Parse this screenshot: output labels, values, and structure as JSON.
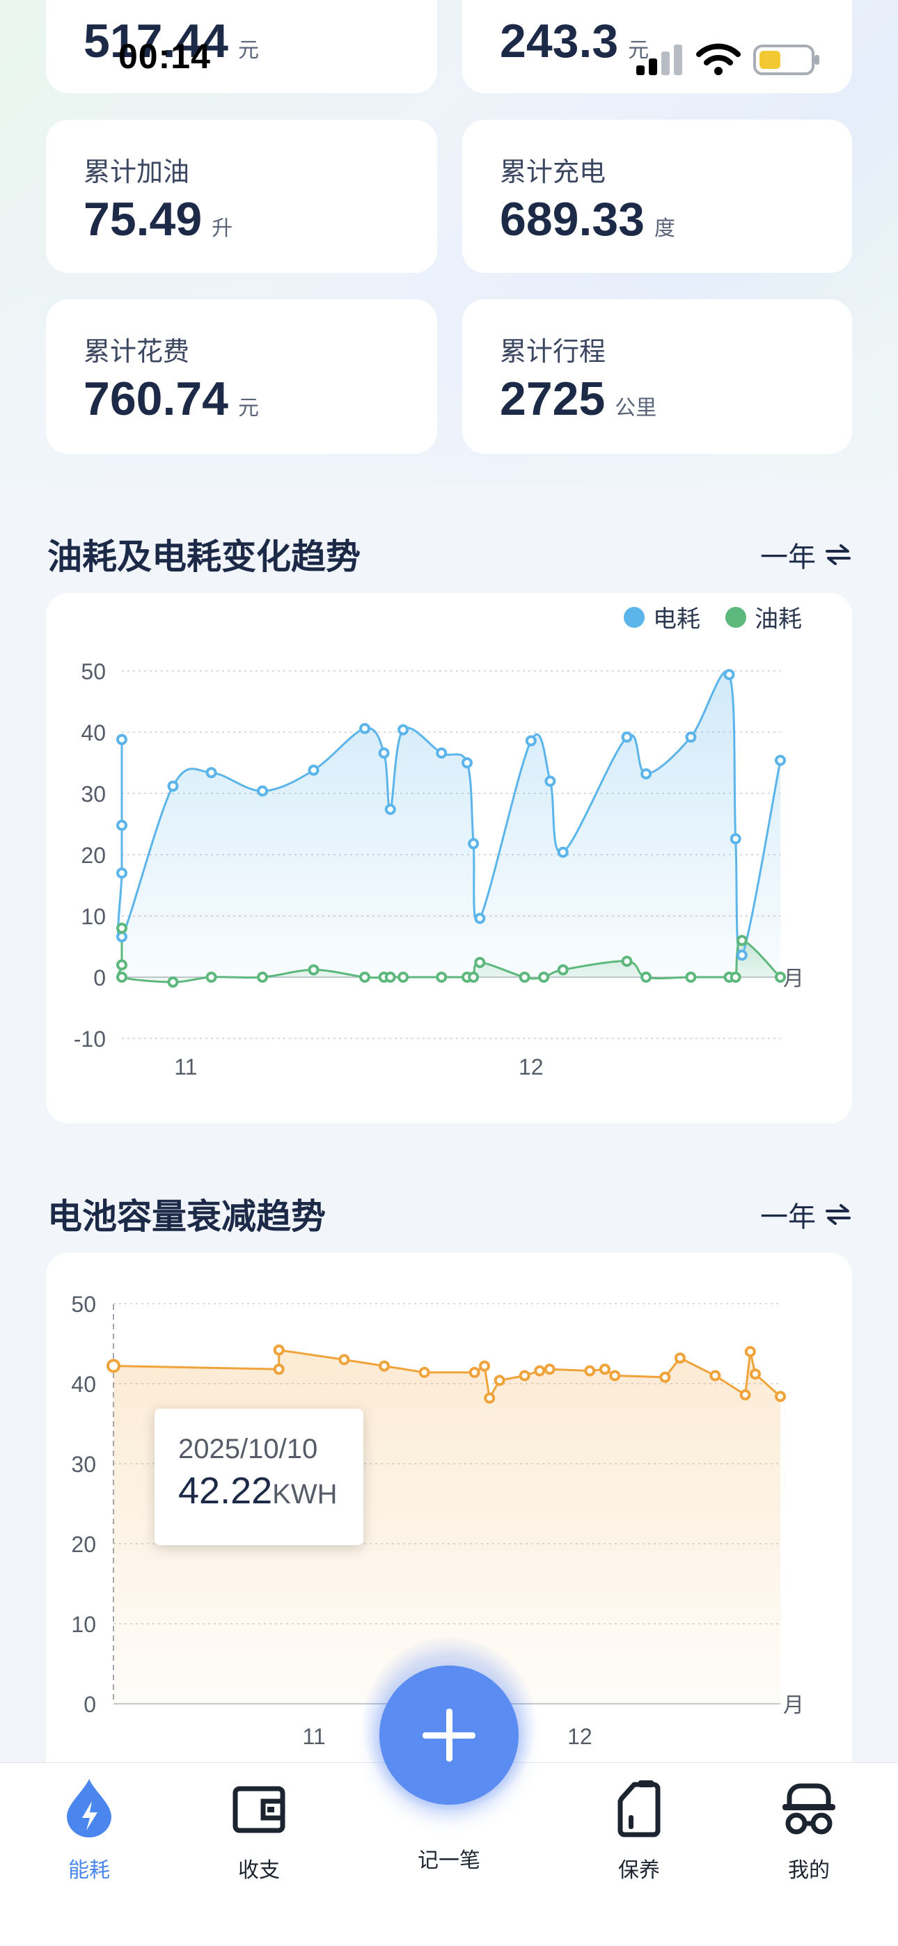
{
  "status_bar": {
    "time": "00:14"
  },
  "stats": [
    {
      "label": "",
      "value": "517.44",
      "unit": "元"
    },
    {
      "label": "",
      "value": "243.3",
      "unit": "元"
    },
    {
      "label": "累计加油",
      "value": "75.49",
      "unit": "升"
    },
    {
      "label": "累计充电",
      "value": "689.33",
      "unit": "度"
    },
    {
      "label": "累计花费",
      "value": "760.74",
      "unit": "元"
    },
    {
      "label": "累计行程",
      "value": "2725",
      "unit": "公里"
    }
  ],
  "consumption_section": {
    "title": "油耗及电耗变化趋势",
    "period": "一年"
  },
  "battery_section": {
    "title": "电池容量衰减趋势",
    "period": "一年"
  },
  "chart_data": [
    {
      "type": "line",
      "title": "油耗及电耗变化趋势",
      "legend_position": "top-right",
      "legend": [
        "电耗",
        "油耗"
      ],
      "x_axis_unit": "月",
      "x_ticks": [
        "11",
        "12"
      ],
      "y_ticks": [
        "50",
        "40",
        "30",
        "20",
        "10",
        "0",
        "-10"
      ],
      "ylim": [
        -10,
        50
      ],
      "grid": true,
      "series": [
        {
          "name": "电耗",
          "color": "#5bb5ea",
          "points": [
            {
              "x": "2025-10-20",
              "y": 38.8
            },
            {
              "x": "2025-10-20",
              "y": 24.8
            },
            {
              "x": "2025-10-20",
              "y": 17.0
            },
            {
              "x": "2025-10-20",
              "y": 6.6
            },
            {
              "x": "2025-10-28",
              "y": 31.2
            },
            {
              "x": "2025-11-03",
              "y": 33.4
            },
            {
              "x": "2025-11-11",
              "y": 30.4
            },
            {
              "x": "2025-11-19",
              "y": 33.8
            },
            {
              "x": "2025-11-27",
              "y": 40.6
            },
            {
              "x": "2025-11-30",
              "y": 36.6
            },
            {
              "x": "2025-12-01",
              "y": 27.4
            },
            {
              "x": "2025-12-03",
              "y": 40.4
            },
            {
              "x": "2025-12-09",
              "y": 36.6
            },
            {
              "x": "2025-12-13",
              "y": 35.0
            },
            {
              "x": "2025-12-14",
              "y": 21.8
            },
            {
              "x": "2025-12-15",
              "y": 9.6
            },
            {
              "x": "2025-12-23",
              "y": 38.6
            },
            {
              "x": "2025-12-26",
              "y": 32.0
            },
            {
              "x": "2025-12-28",
              "y": 20.4
            },
            {
              "x": "2026-01-07",
              "y": 39.2
            },
            {
              "x": "2026-01-10",
              "y": 33.2
            },
            {
              "x": "2026-01-17",
              "y": 39.2
            },
            {
              "x": "2026-01-23",
              "y": 49.4
            },
            {
              "x": "2026-01-24",
              "y": 22.6
            },
            {
              "x": "2026-01-25",
              "y": 3.6
            },
            {
              "x": "2026-01-31",
              "y": 35.4
            }
          ]
        },
        {
          "name": "油耗",
          "color": "#5cb87c",
          "points": [
            {
              "x": "2025-10-20",
              "y": 8.0
            },
            {
              "x": "2025-10-20",
              "y": 2.0
            },
            {
              "x": "2025-10-20",
              "y": 0
            },
            {
              "x": "2025-10-28",
              "y": -0.8
            },
            {
              "x": "2025-11-03",
              "y": 0
            },
            {
              "x": "2025-11-11",
              "y": 0
            },
            {
              "x": "2025-11-19",
              "y": 1.2
            },
            {
              "x": "2025-11-27",
              "y": 0
            },
            {
              "x": "2025-11-30",
              "y": 0
            },
            {
              "x": "2025-12-01",
              "y": 0
            },
            {
              "x": "2025-12-03",
              "y": 0
            },
            {
              "x": "2025-12-09",
              "y": 0
            },
            {
              "x": "2025-12-13",
              "y": 0
            },
            {
              "x": "2025-12-14",
              "y": 0
            },
            {
              "x": "2025-12-15",
              "y": 2.4
            },
            {
              "x": "2025-12-22",
              "y": 0
            },
            {
              "x": "2025-12-25",
              "y": 0
            },
            {
              "x": "2025-12-28",
              "y": 1.2
            },
            {
              "x": "2026-01-07",
              "y": 2.6
            },
            {
              "x": "2026-01-10",
              "y": 0
            },
            {
              "x": "2026-01-17",
              "y": 0
            },
            {
              "x": "2026-01-23",
              "y": 0
            },
            {
              "x": "2026-01-24",
              "y": 0
            },
            {
              "x": "2026-01-25",
              "y": 6.0
            },
            {
              "x": "2026-01-31",
              "y": 0
            }
          ]
        }
      ]
    },
    {
      "type": "area",
      "title": "电池容量衰减趋势",
      "x_axis_unit": "月",
      "x_ticks": [
        "11",
        "12"
      ],
      "y_ticks": [
        "50",
        "40",
        "30",
        "20",
        "10",
        "0"
      ],
      "ylim": [
        0,
        50
      ],
      "grid": true,
      "tooltip": {
        "date": "2025/10/10",
        "value": "42.22",
        "unit": "KWH"
      },
      "series": [
        {
          "color": "#f0a33a",
          "points": [
            {
              "x": "2025-10-10",
              "y": 42.22
            },
            {
              "x": "2025-11-12",
              "y": 41.8
            },
            {
              "x": "2025-11-12",
              "y": 44.2
            },
            {
              "x": "2025-11-25",
              "y": 43.0
            },
            {
              "x": "2025-12-03",
              "y": 42.2
            },
            {
              "x": "2025-12-11",
              "y": 41.4
            },
            {
              "x": "2025-12-21",
              "y": 41.4
            },
            {
              "x": "2025-12-23",
              "y": 42.2
            },
            {
              "x": "2025-12-24",
              "y": 38.2
            },
            {
              "x": "2025-12-26",
              "y": 40.4
            },
            {
              "x": "2025-12-31",
              "y": 41.0
            },
            {
              "x": "2026-01-03",
              "y": 41.6
            },
            {
              "x": "2026-01-05",
              "y": 41.8
            },
            {
              "x": "2026-01-13",
              "y": 41.6
            },
            {
              "x": "2026-01-16",
              "y": 41.8
            },
            {
              "x": "2026-01-18",
              "y": 41.0
            },
            {
              "x": "2026-01-28",
              "y": 40.8
            },
            {
              "x": "2026-01-31",
              "y": 43.2
            },
            {
              "x": "2026-02-07",
              "y": 41.0
            },
            {
              "x": "2026-02-13",
              "y": 38.6
            },
            {
              "x": "2026-02-14",
              "y": 44.0
            },
            {
              "x": "2026-02-15",
              "y": 41.2
            },
            {
              "x": "2026-02-20",
              "y": 38.4
            }
          ]
        }
      ]
    }
  ],
  "fab": {
    "label": "记一笔"
  },
  "tabs": [
    {
      "label": "能耗",
      "icon": "energy-drop-icon",
      "active": true
    },
    {
      "label": "收支",
      "icon": "wallet-icon",
      "active": false
    },
    {
      "label": "保养",
      "icon": "fuel-can-icon",
      "active": false
    },
    {
      "label": "我的",
      "icon": "car-profile-icon",
      "active": false
    }
  ],
  "colors": {
    "accent": "#4a86ee",
    "electric": "#5bb5ea",
    "fuel": "#5cb87c",
    "battery": "#f0a33a"
  }
}
